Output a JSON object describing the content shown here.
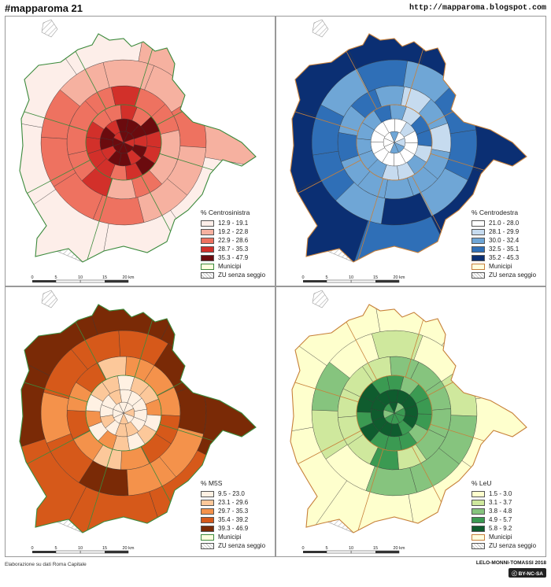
{
  "header": {
    "title": "#mapparoma 21",
    "url": "http://mapparoma.blogspot.com"
  },
  "colors": {
    "cs": [
      "#fdeee9",
      "#f6b1a0",
      "#ee7260",
      "#d2302a",
      "#6b0b0e"
    ],
    "cd": [
      "#ffffff",
      "#c6dbef",
      "#6fa6d6",
      "#2f6fb7",
      "#0b2f73"
    ],
    "m5s": [
      "#fff1e3",
      "#fcc89a",
      "#f4924b",
      "#d6591a",
      "#7a2a06"
    ],
    "leu": [
      "#feffcd",
      "#cfe89d",
      "#86c47e",
      "#3b9a52",
      "#0f5c2e"
    ],
    "municipi": "#ffffe0"
  },
  "panels": [
    {
      "id": "cs",
      "legend_title": "% Centrosinistra",
      "classes": [
        "12.9 - 19.1",
        "19.2 - 22.8",
        "22.9 - 28.6",
        "28.7 - 35.3",
        "35.3 - 47.9"
      ],
      "municipi_label": "Municipi",
      "zu_label": "ZU senza seggio",
      "border": "#3c8a3c"
    },
    {
      "id": "cd",
      "legend_title": "% Centrodestra",
      "classes": [
        "21.0 - 28.0",
        "28.1 - 29.9",
        "30.0 - 32.4",
        "32.5 - 35.1",
        "35.2 - 45.3"
      ],
      "municipi_label": "Municipi",
      "zu_label": "ZU senza seggio",
      "border": "#c7803a"
    },
    {
      "id": "m5s",
      "legend_title": "% M5S",
      "classes": [
        "9.5 - 23.0",
        "23.1 - 29.6",
        "29.7 - 35.3",
        "35.4 - 39.2",
        "39.3 - 46.9"
      ],
      "municipi_label": "Municipi",
      "zu_label": "ZU senza seggio",
      "border": "#3c8a3c"
    },
    {
      "id": "leu",
      "legend_title": "% LeU",
      "classes": [
        "1.5 - 3.0",
        "3.1 - 3.7",
        "3.8 - 4.8",
        "4.9 - 5.7",
        "5.8 - 9.2"
      ],
      "municipi_label": "Municipi",
      "zu_label": "ZU senza seggio",
      "border": "#c7803a"
    }
  ],
  "scale": {
    "ticks": [
      "0",
      "5",
      "10",
      "15",
      "20 km"
    ]
  },
  "footer": {
    "left": "Elaborazione su dati Roma Capitale",
    "right": "LELO-MONNI-TOMASSI 2018",
    "license": "BY-NC-SA"
  }
}
